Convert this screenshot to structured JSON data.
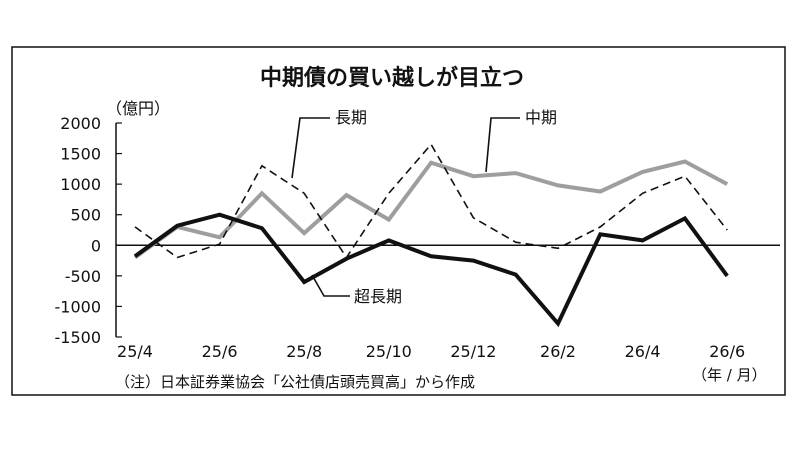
{
  "chart_data": {
    "type": "line",
    "title": "中期債の買い越しが目立つ",
    "yunit": "（億円）",
    "xunit": "（年 / 月）",
    "note": "（注）日本証券業協会「公社債店頭売買高」から作成",
    "ylim": [
      -1500,
      2000
    ],
    "yticks": [
      2000,
      1500,
      1000,
      500,
      0,
      -500,
      -1000,
      -1500
    ],
    "x": [
      "25/4",
      "25/5",
      "25/6",
      "25/7",
      "25/8",
      "25/9",
      "25/10",
      "25/11",
      "25/12",
      "26/1",
      "26/2",
      "26/3",
      "26/4",
      "26/5",
      "26/6"
    ],
    "xtick_labels": [
      "25/4",
      "25/6",
      "25/8",
      "25/10",
      "25/12",
      "26/2",
      "26/4",
      "26/6"
    ],
    "series": [
      {
        "name": "長期",
        "style": "dashed",
        "color": "#111111",
        "values": [
          300,
          -200,
          20,
          1300,
          850,
          -200,
          850,
          1650,
          450,
          50,
          -50,
          300,
          850,
          1130,
          250
        ]
      },
      {
        "name": "中期",
        "style": "solid",
        "color": "#9e9e9e",
        "values": [
          -200,
          300,
          130,
          850,
          200,
          820,
          420,
          1350,
          1130,
          1180,
          980,
          880,
          1200,
          1370,
          1000
        ]
      },
      {
        "name": "超長期",
        "style": "solid",
        "color": "#111111",
        "values": [
          -180,
          320,
          500,
          280,
          -600,
          -220,
          80,
          -180,
          -250,
          -480,
          -1280,
          180,
          80,
          440,
          -500
        ]
      }
    ],
    "grid": false
  }
}
